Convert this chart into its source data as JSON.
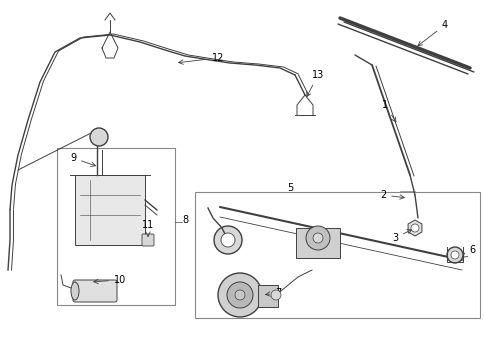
{
  "bg_color": "#ffffff",
  "line_color": "#404040",
  "fig_width": 4.85,
  "fig_height": 3.57,
  "dpi": 100,
  "xlim": [
    0,
    485
  ],
  "ylim": [
    0,
    357
  ]
}
